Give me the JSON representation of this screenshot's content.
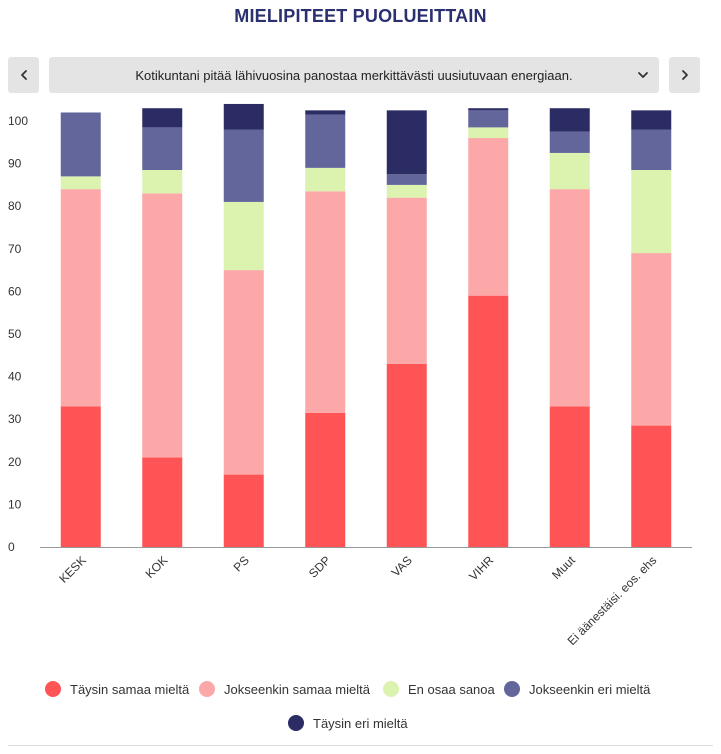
{
  "title": "MIELIPITEET PUOLUEITTAIN",
  "selector": {
    "value": "Kotikuntani pitää lähivuosina panostaa merkittävästi uusiutuvaan energiaan."
  },
  "icons": {
    "prev": "chevron-left-icon",
    "next": "chevron-right-icon",
    "dropdown": "chevron-down-icon"
  },
  "chart_data": {
    "type": "bar",
    "stacked": true,
    "title": "",
    "xlabel": "",
    "ylabel": "",
    "ylim": [
      0,
      100
    ],
    "yticks": [
      0,
      10,
      20,
      30,
      40,
      50,
      60,
      70,
      80,
      90,
      100
    ],
    "grid": false,
    "legend_position": "bottom",
    "categories": [
      "KESK",
      "KOK",
      "PS",
      "SDP",
      "VAS",
      "VIHR",
      "Muut",
      "Ei äänestäisi. eos. ehs"
    ],
    "series": [
      {
        "name": "Täysin samaa mieltä",
        "color": "#ff5456",
        "values": [
          33,
          21,
          17,
          31.5,
          43,
          59,
          33,
          28.5
        ]
      },
      {
        "name": "Jokseenkin samaa mieltä",
        "color": "#fca7a8",
        "values": [
          51,
          62,
          48,
          52,
          39,
          37,
          51,
          40.5
        ]
      },
      {
        "name": "En osaa sanoa",
        "color": "#dcf3b0",
        "values": [
          3,
          5.5,
          16,
          5.5,
          3,
          2.5,
          8.5,
          19.5
        ]
      },
      {
        "name": "Jokseenkin eri mieltä",
        "color": "#63669b",
        "values": [
          15,
          10,
          17,
          12.5,
          2.5,
          4,
          5,
          9.5
        ]
      },
      {
        "name": "Täysin eri mieltä",
        "color": "#2b2c63",
        "values": [
          0,
          4.5,
          6,
          1,
          15,
          0.5,
          5.5,
          4.5
        ]
      }
    ]
  }
}
